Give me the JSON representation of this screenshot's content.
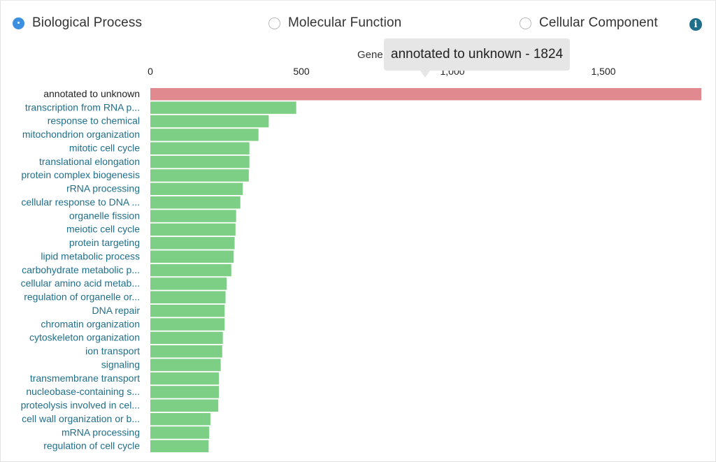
{
  "radios": [
    {
      "label": "Biological Process",
      "checked": true
    },
    {
      "label": "Molecular Function",
      "checked": false
    },
    {
      "label": "Cellular Component",
      "checked": false
    }
  ],
  "info_icon": "info-icon",
  "tooltip": {
    "text": "annotated to unknown - 1824"
  },
  "colors": {
    "highlight": "#e08a90",
    "bar": "#7dcf85",
    "label_link": "#1f6f8b"
  },
  "chart_data": {
    "type": "bar",
    "orientation": "horizontal",
    "xlabel": "Gene",
    "xlim": [
      0,
      1824
    ],
    "x_ticks": [
      0,
      500,
      1000,
      1500
    ],
    "x_tick_labels": [
      "0",
      "500",
      "1,000",
      "1,500"
    ],
    "categories": [
      "annotated to unknown",
      "transcription from RNA p...",
      "response to chemical",
      "mitochondrion organization",
      "mitotic cell cycle",
      "translational elongation",
      "protein complex biogenesis",
      "rRNA processing",
      "cellular response to DNA ...",
      "organelle fission",
      "meiotic cell cycle",
      "protein targeting",
      "lipid metabolic process",
      "carbohydrate metabolic p...",
      "cellular amino acid metab...",
      "regulation of organelle or...",
      "DNA repair",
      "chromatin organization",
      "cytoskeleton organization",
      "ion transport",
      "signaling",
      "transmembrane transport",
      "nucleobase-containing s...",
      "proteolysis involved in cel...",
      "cell wall organization or b...",
      "mRNA processing",
      "regulation of cell cycle"
    ],
    "values": [
      1824,
      483,
      392,
      358,
      328,
      328,
      326,
      306,
      298,
      284,
      282,
      279,
      276,
      268,
      253,
      249,
      246,
      246,
      240,
      238,
      233,
      227,
      227,
      225,
      199,
      195,
      193
    ],
    "highlight_index": 0
  }
}
